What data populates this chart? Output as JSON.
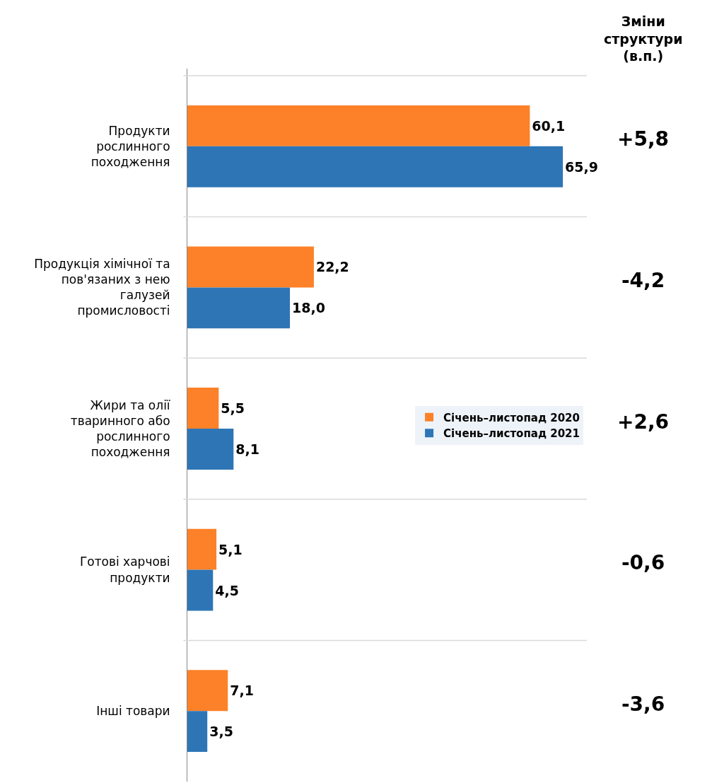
{
  "chart_data": {
    "type": "bar",
    "orientation": "horizontal",
    "categories": [
      "Продукти\nрослинного\nпоходження",
      "Продукція хімічної та\nпов'язаних з нею\nгалузей\nпромисловості",
      "Жири та олії\nтваринного або\nрослинного\nпоходження",
      "Готові харчові\nпродукти",
      "Інші товари"
    ],
    "series": [
      {
        "name": "Січень–листопад 2020",
        "color": "#fd8128",
        "values": [
          60.1,
          22.2,
          5.5,
          5.1,
          7.1
        ],
        "value_labels": [
          "60,1",
          "22,2",
          "5,5",
          "5,1",
          "7,1"
        ]
      },
      {
        "name": "Січень–листопад 2021",
        "color": "#2e75b6",
        "values": [
          65.9,
          18.0,
          8.1,
          4.5,
          3.5
        ],
        "value_labels": [
          "65,9",
          "18,0",
          "8,1",
          "4,5",
          "3,5"
        ]
      }
    ],
    "tick_labels": "y",
    "grid": "y",
    "legend": "right",
    "annotations": [
      "Зміни\nструктури\n(в.п.)",
      "+5,8",
      "-4,2",
      "+2,6",
      "-0,6",
      "-3,6"
    ]
  }
}
